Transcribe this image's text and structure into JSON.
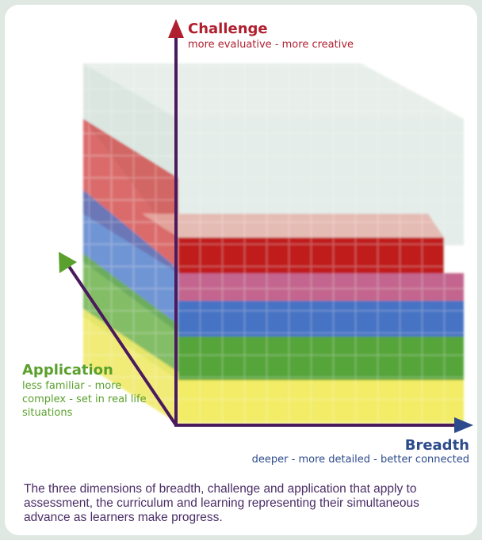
{
  "challenge": {
    "title": "Challenge",
    "subtitle": "more evaluative - more creative",
    "color": "#b01f2f"
  },
  "application": {
    "title": "Application",
    "subtitle": "less familiar - more complex - set in real life situations",
    "color": "#5aa02c"
  },
  "breadth": {
    "title": "Breadth",
    "subtitle": "deeper - more detailed - better connected",
    "color": "#2c4a8c"
  },
  "caption": "The three dimensions of breadth, challenge and application that apply to assessment, the curriculum and learning representing their simultaneous advance as learners make progress.",
  "colors": {
    "axis": "#4a1a5c",
    "layers": [
      "#f2ec6a",
      "#6fb24a",
      "#4b7cc8",
      "#c62a2a",
      "#d8e6e0"
    ]
  }
}
